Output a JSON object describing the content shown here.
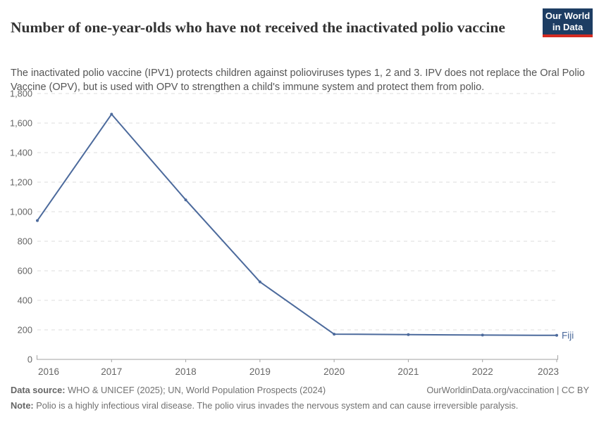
{
  "header": {
    "title": "Number of one-year-olds who have not received the inactivated polio vaccine",
    "subtitle": "The inactivated polio vaccine (IPV1) protects children against polioviruses types 1, 2 and 3. IPV does not replace the Oral Polio Vaccine (OPV), but is used with OPV to strengthen a child's immune system and protect them from polio.",
    "logo": {
      "line1": "Our World",
      "line2": "in Data",
      "bg_color": "#1d3d63",
      "bar_color": "#d42b21"
    }
  },
  "chart_data": {
    "type": "line",
    "title": "Number of one-year-olds who have not received the inactivated polio vaccine",
    "x": [
      2016,
      2017,
      2018,
      2019,
      2020,
      2021,
      2022,
      2023
    ],
    "series": [
      {
        "name": "Fiji",
        "values": [
          940,
          1660,
          1080,
          525,
          171,
          168,
          165,
          163
        ],
        "color": "#4c6a9c"
      }
    ],
    "xlabel": "",
    "ylabel": "",
    "ylim": [
      0,
      1800
    ],
    "yticks": [
      0,
      200,
      400,
      600,
      800,
      1000,
      1200,
      1400,
      1600,
      1800
    ],
    "ytick_labels": [
      "0",
      "200",
      "400",
      "600",
      "800",
      "1,000",
      "1,200",
      "1,400",
      "1,600",
      "1,800"
    ],
    "xtick_labels": [
      "2016",
      "2017",
      "2018",
      "2019",
      "2020",
      "2021",
      "2022",
      "2023"
    ],
    "grid": "horizontal-dashed",
    "legend": "end-of-line-label",
    "colors": {
      "grid": "#dcdcdc",
      "axis": "#a3a3a3",
      "tick_text": "#666666"
    }
  },
  "footer": {
    "datasource_label": "Data source:",
    "datasource_text": " WHO & UNICEF (2025); UN, World Population Prospects (2024)",
    "rights": "OurWorldinData.org/vaccination | CC BY",
    "note_label": "Note:",
    "note_text": " Polio is a highly infectious viral disease. The polio virus invades the nervous system and can cause irreversible paralysis."
  }
}
